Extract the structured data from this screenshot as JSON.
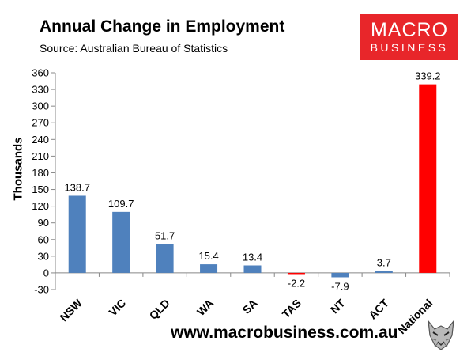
{
  "header": {
    "title": "Annual Change in Employment",
    "subtitle": "Source: Australian Bureau of Statistics"
  },
  "logo": {
    "line1": "MACRO",
    "line2": "BUSINESS",
    "color": "#e8262a",
    "icon": "wolf-head-icon"
  },
  "footer": {
    "url": "www.macrobusiness.com.au"
  },
  "chart_data": {
    "type": "bar",
    "categories": [
      "NSW",
      "VIC",
      "QLD",
      "WA",
      "SA",
      "TAS",
      "NT",
      "ACT",
      "National"
    ],
    "values": [
      138.7,
      109.7,
      51.7,
      15.4,
      13.4,
      -2.2,
      -7.9,
      3.7,
      339.2
    ],
    "data_labels": [
      "138.7",
      "109.7",
      "51.7",
      "15.4",
      "13.4",
      "-2.2",
      "-7.9",
      "3.7",
      "339.2"
    ],
    "colors": [
      "#4f81bd",
      "#4f81bd",
      "#4f81bd",
      "#4f81bd",
      "#4f81bd",
      "#ff0000",
      "#4f81bd",
      "#4f81bd",
      "#ff0000"
    ],
    "ylabel": "Thousands",
    "ylim": [
      -30,
      360
    ],
    "yticks": [
      -30,
      0,
      30,
      60,
      90,
      120,
      150,
      180,
      210,
      240,
      270,
      300,
      330,
      360
    ],
    "grid": false,
    "legend": "none"
  }
}
